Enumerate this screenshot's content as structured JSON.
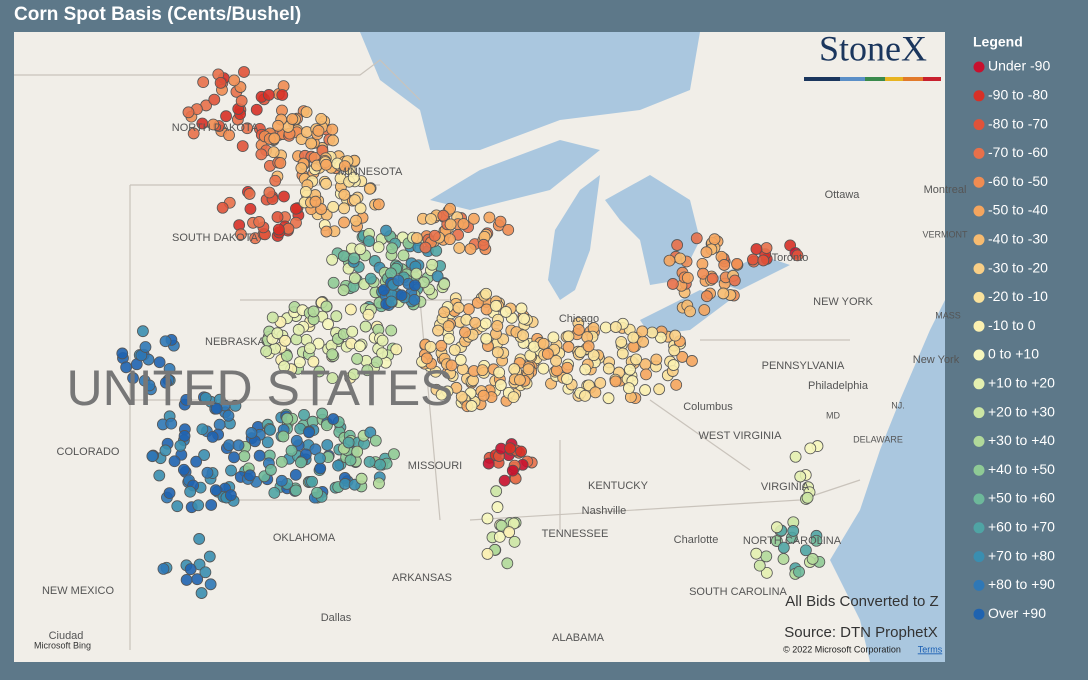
{
  "header": {
    "title": "Corn Spot Basis (Cents/Bushel)"
  },
  "logo": "StoneX",
  "legend": {
    "title": "Legend",
    "items": [
      {
        "label": "Under -90",
        "color": "#c8102e"
      },
      {
        "label": "-90 to -80",
        "color": "#d73027"
      },
      {
        "label": "-80 to -70",
        "color": "#e0533a"
      },
      {
        "label": "-70 to -60",
        "color": "#e8704a"
      },
      {
        "label": "-60 to -50",
        "color": "#f08c52"
      },
      {
        "label": "-50 to -40",
        "color": "#f5a55e"
      },
      {
        "label": "-40 to -30",
        "color": "#f7bb70"
      },
      {
        "label": "-30 to -20",
        "color": "#f9cf86"
      },
      {
        "label": "-20 to -10",
        "color": "#fae29c"
      },
      {
        "label": "-10 to 0",
        "color": "#fbf0b0"
      },
      {
        "label": "0 to +10",
        "color": "#f6f6bd"
      },
      {
        "label": "+10 to +20",
        "color": "#e4f0b0"
      },
      {
        "label": "+20 to +30",
        "color": "#cce6a4"
      },
      {
        "label": "+30 to +40",
        "color": "#b1d99a"
      },
      {
        "label": "+40 to +50",
        "color": "#8fca95"
      },
      {
        "label": "+50 to +60",
        "color": "#6db89a"
      },
      {
        "label": "+60 to +70",
        "color": "#4fa4a4"
      },
      {
        "label": "+70 to +80",
        "color": "#3a8eb0"
      },
      {
        "label": "+80 to +90",
        "color": "#2f78b6"
      },
      {
        "label": "Over +90",
        "color": "#1f63b0"
      }
    ]
  },
  "map_labels": [
    "NORTH DAKOTA",
    "MINNESOTA",
    "SOUTH DAKOTA",
    "NEBRASKA",
    "UNITED STATES",
    "COLORADO",
    "MISSOURI",
    "KENTUCKY",
    "TENNESSEE",
    "Nashville",
    "OKLAHOMA",
    "ARKANSAS",
    "NEW MEXICO",
    "Dallas",
    "ALABAMA",
    "Chicago",
    "Columbus",
    "WEST VIRGINIA",
    "VIRGINIA",
    "NORTH CAROLINA",
    "Charlotte",
    "SOUTH CAROLINA",
    "NEW YORK",
    "PENNSYLVANIA",
    "Philadelphia",
    "New York",
    "Ottawa",
    "Montreal",
    "Toronto",
    "VERMONT",
    "MASS",
    "NJ.",
    "MD",
    "DELAWARE",
    "Ciudad"
  ],
  "notes": {
    "conversion": "All Bids Converted to Z",
    "source": "Source: DTN ProphetX",
    "copyright": "© 2022 Microsoft Corporation",
    "terms": "Terms",
    "bing": "Microsoft Bing"
  }
}
